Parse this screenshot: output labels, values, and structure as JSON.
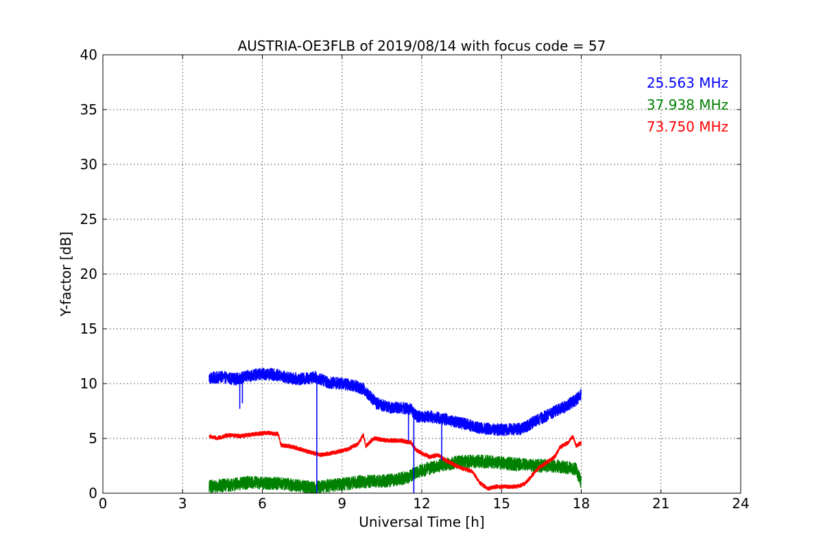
{
  "chart_data": {
    "type": "line",
    "title": "AUSTRIA-OE3FLB of 2019/08/14 with focus code = 57",
    "xlabel": "Universal Time [h]",
    "ylabel": "Y-factor [dB]",
    "xlim": [
      0,
      24
    ],
    "ylim": [
      0,
      40
    ],
    "xticks": [
      0,
      3,
      6,
      9,
      12,
      15,
      18,
      21,
      24
    ],
    "yticks": [
      0,
      5,
      10,
      15,
      20,
      25,
      30,
      35,
      40
    ],
    "grid": true,
    "legend_position": "top-right",
    "series": [
      {
        "name": "25.563 MHz",
        "color": "#0000ff",
        "noise": 0.55,
        "points": [
          [
            4.0,
            10.5
          ],
          [
            4.5,
            10.6
          ],
          [
            5.0,
            10.4
          ],
          [
            5.5,
            10.7
          ],
          [
            6.0,
            10.9
          ],
          [
            6.5,
            10.8
          ],
          [
            7.0,
            10.5
          ],
          [
            7.5,
            10.4
          ],
          [
            8.0,
            10.6
          ],
          [
            8.5,
            10.1
          ],
          [
            9.0,
            10.0
          ],
          [
            9.5,
            9.8
          ],
          [
            9.8,
            9.5
          ],
          [
            10.0,
            9.0
          ],
          [
            10.3,
            8.2
          ],
          [
            10.8,
            7.8
          ],
          [
            11.2,
            7.8
          ],
          [
            11.6,
            7.7
          ],
          [
            11.8,
            7.0
          ],
          [
            12.3,
            7.0
          ],
          [
            12.8,
            6.8
          ],
          [
            13.3,
            6.5
          ],
          [
            13.8,
            6.2
          ],
          [
            14.3,
            5.9
          ],
          [
            14.8,
            5.8
          ],
          [
            15.3,
            5.8
          ],
          [
            15.8,
            5.9
          ],
          [
            16.2,
            6.5
          ],
          [
            16.8,
            7.2
          ],
          [
            17.3,
            7.8
          ],
          [
            17.8,
            8.5
          ],
          [
            18.0,
            9.0
          ]
        ],
        "dips": [
          [
            5.15,
            7.7
          ],
          [
            5.25,
            8.2
          ],
          [
            8.05,
            0.0
          ],
          [
            11.5,
            4.8
          ],
          [
            11.7,
            0.0
          ],
          [
            12.75,
            3.0
          ]
        ]
      },
      {
        "name": "37.938 MHz",
        "color": "#008000",
        "noise": 0.6,
        "points": [
          [
            4.0,
            0.6
          ],
          [
            4.5,
            0.7
          ],
          [
            5.0,
            0.8
          ],
          [
            5.5,
            1.0
          ],
          [
            6.0,
            0.9
          ],
          [
            6.5,
            0.9
          ],
          [
            7.0,
            0.8
          ],
          [
            7.5,
            0.6
          ],
          [
            8.0,
            0.5
          ],
          [
            8.5,
            0.7
          ],
          [
            9.0,
            0.8
          ],
          [
            9.5,
            1.0
          ],
          [
            10.0,
            1.1
          ],
          [
            10.5,
            1.1
          ],
          [
            11.0,
            1.2
          ],
          [
            11.5,
            1.5
          ],
          [
            11.8,
            1.9
          ],
          [
            12.3,
            2.3
          ],
          [
            12.8,
            2.6
          ],
          [
            13.3,
            2.8
          ],
          [
            13.8,
            2.9
          ],
          [
            14.3,
            2.9
          ],
          [
            14.8,
            2.8
          ],
          [
            15.3,
            2.7
          ],
          [
            15.8,
            2.6
          ],
          [
            16.3,
            2.5
          ],
          [
            16.8,
            2.5
          ],
          [
            17.3,
            2.4
          ],
          [
            17.8,
            2.2
          ],
          [
            18.0,
            1.0
          ]
        ],
        "dips": []
      },
      {
        "name": "73.750 MHz",
        "color": "#ff0000",
        "noise": 0.18,
        "points": [
          [
            4.0,
            5.2
          ],
          [
            4.3,
            5.0
          ],
          [
            4.7,
            5.3
          ],
          [
            5.2,
            5.2
          ],
          [
            5.7,
            5.4
          ],
          [
            6.2,
            5.5
          ],
          [
            6.6,
            5.4
          ],
          [
            6.7,
            4.4
          ],
          [
            7.2,
            4.2
          ],
          [
            7.7,
            3.8
          ],
          [
            8.2,
            3.5
          ],
          [
            8.7,
            3.7
          ],
          [
            9.2,
            4.0
          ],
          [
            9.6,
            4.5
          ],
          [
            9.8,
            5.3
          ],
          [
            9.9,
            4.3
          ],
          [
            10.2,
            5.0
          ],
          [
            10.7,
            4.8
          ],
          [
            11.2,
            4.8
          ],
          [
            11.6,
            4.6
          ],
          [
            11.8,
            3.9
          ],
          [
            12.3,
            3.3
          ],
          [
            12.6,
            3.5
          ],
          [
            12.9,
            3.0
          ],
          [
            13.3,
            2.5
          ],
          [
            13.6,
            2.2
          ],
          [
            13.9,
            2.0
          ],
          [
            14.2,
            0.9
          ],
          [
            14.5,
            0.4
          ],
          [
            14.8,
            0.6
          ],
          [
            15.2,
            0.6
          ],
          [
            15.6,
            0.6
          ],
          [
            15.9,
            0.9
          ],
          [
            16.1,
            1.5
          ],
          [
            16.4,
            2.3
          ],
          [
            16.7,
            2.8
          ],
          [
            17.0,
            3.3
          ],
          [
            17.2,
            4.2
          ],
          [
            17.5,
            4.6
          ],
          [
            17.7,
            5.2
          ],
          [
            17.8,
            4.3
          ],
          [
            18.0,
            4.6
          ]
        ],
        "dips": []
      }
    ]
  }
}
